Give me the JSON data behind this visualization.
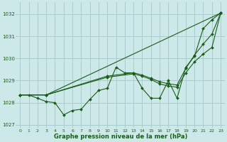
{
  "bg_color": "#cce8e8",
  "grid_color": "#aacccc",
  "line_color": "#1a5c1a",
  "xlabel": "Graphe pression niveau de la mer (hPa)",
  "ylim": [
    1026.85,
    1032.55
  ],
  "xlim": [
    -0.5,
    23.5
  ],
  "yticks": [
    1027,
    1028,
    1029,
    1030,
    1031,
    1032
  ],
  "xtick_labels": [
    "0",
    "1",
    "2",
    "3",
    "4",
    "5",
    "6",
    "7",
    "8",
    "9",
    "10",
    "11",
    "12",
    "13",
    "14",
    "15",
    "16",
    "17",
    "18",
    "19",
    "20",
    "21",
    "22",
    "23"
  ],
  "line1_x": [
    0,
    1,
    2,
    3,
    4,
    5,
    6,
    7,
    8,
    9,
    10,
    11,
    12,
    13,
    14,
    15,
    16,
    17,
    18,
    19,
    20,
    21,
    22,
    23
  ],
  "line1": [
    1028.35,
    1028.35,
    1028.2,
    1028.05,
    1028.0,
    1027.45,
    1027.65,
    1027.7,
    1028.15,
    1028.55,
    1028.65,
    1029.6,
    1029.35,
    1029.35,
    1028.65,
    1028.2,
    1028.2,
    1029.0,
    1028.2,
    1029.6,
    1030.1,
    1031.35,
    1031.75,
    1032.05
  ],
  "line2_x": [
    0,
    3,
    10,
    13,
    14,
    15,
    16,
    17,
    18,
    19,
    20,
    21,
    22,
    23
  ],
  "line2": [
    1028.35,
    1028.35,
    1029.15,
    1029.3,
    1029.2,
    1029.05,
    1028.85,
    1028.75,
    1028.7,
    1029.35,
    1029.85,
    1030.2,
    1030.5,
    1032.05
  ],
  "line3_x": [
    0,
    3,
    10,
    13,
    14,
    15,
    16,
    17,
    18,
    19,
    20,
    21,
    22,
    23
  ],
  "line3": [
    1028.35,
    1028.35,
    1029.2,
    1029.35,
    1029.25,
    1029.1,
    1028.95,
    1028.85,
    1028.8,
    1029.55,
    1030.15,
    1030.65,
    1031.1,
    1032.05
  ],
  "line4_x": [
    0,
    3,
    23
  ],
  "line4": [
    1028.35,
    1028.35,
    1032.05
  ]
}
